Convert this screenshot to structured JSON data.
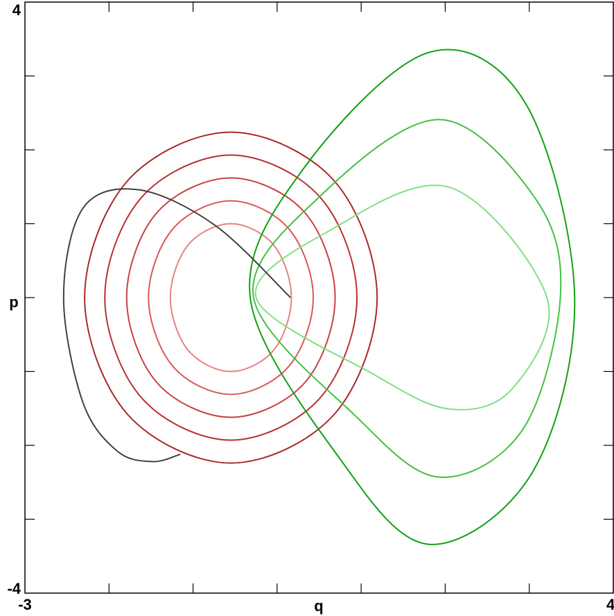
{
  "chart_data": {
    "type": "line",
    "xlabel": "q",
    "ylabel": "p",
    "xlim": [
      -3,
      4
    ],
    "ylim": [
      -4,
      4
    ],
    "xticks": [
      -3,
      4
    ],
    "yticks": [
      -4,
      4
    ],
    "xminorticks": [
      -2,
      -1,
      0,
      1,
      2,
      3
    ],
    "yminorticks": [
      -3,
      -2,
      -1,
      0,
      1,
      2,
      3
    ],
    "series": [
      {
        "color": "#e88080",
        "closed": true,
        "x": [
          0.17,
          -0.04,
          -0.55,
          -1.06,
          -1.27,
          -1.06,
          -0.55,
          -0.04
        ],
        "y": [
          0,
          0.71,
          1.0,
          0.71,
          0,
          -0.71,
          -1.0,
          -0.71
        ]
      },
      {
        "color": "#d85858",
        "closed": true,
        "x": [
          0.43,
          0.14,
          -0.55,
          -1.24,
          -1.53,
          -1.24,
          -0.55,
          0.14
        ],
        "y": [
          0,
          0.93,
          1.31,
          0.93,
          0,
          -0.93,
          -1.31,
          -0.93
        ]
      },
      {
        "color": "#c84040",
        "closed": true,
        "x": [
          0.69,
          0.33,
          -0.55,
          -1.43,
          -1.79,
          -1.43,
          -0.55,
          0.33
        ],
        "y": [
          0,
          1.15,
          1.62,
          1.15,
          0,
          -1.15,
          -1.62,
          -1.15
        ]
      },
      {
        "color": "#b83030",
        "closed": true,
        "x": [
          0.95,
          0.51,
          -0.55,
          -1.61,
          -2.05,
          -1.61,
          -0.55,
          0.51
        ],
        "y": [
          0,
          1.36,
          1.93,
          1.36,
          0,
          -1.36,
          -1.93,
          -1.36
        ]
      },
      {
        "color": "#a82828",
        "closed": true,
        "x": [
          1.19,
          0.68,
          -0.55,
          -1.78,
          -2.29,
          -1.78,
          -0.55,
          0.68
        ],
        "y": [
          0,
          1.58,
          2.24,
          1.58,
          0,
          -1.58,
          -2.24,
          -1.58
        ]
      },
      {
        "color": "#80e080",
        "closed": true,
        "x": [
          -0.25,
          0.66,
          2.06,
          3.21,
          2.8,
          2.06,
          1.15
        ],
        "y": [
          0,
          0.93,
          1.49,
          0,
          -1.23,
          -1.51,
          -1.04
        ]
      },
      {
        "color": "#40c040",
        "closed": true,
        "x": [
          -0.28,
          0.49,
          1.93,
          3.09,
          3.37,
          2.92,
          1.93,
          0.94
        ],
        "y": [
          0,
          1.35,
          2.41,
          1.31,
          0,
          -1.79,
          -2.43,
          -1.61
        ]
      },
      {
        "color": "#10a010",
        "closed": true,
        "x": [
          -0.32,
          0.33,
          1.81,
          2.96,
          3.54,
          3.04,
          1.81,
          0.74
        ],
        "y": [
          0,
          1.77,
          3.32,
          2.62,
          0,
          -2.36,
          -3.34,
          -2.17
        ]
      },
      {
        "color": "#404040",
        "closed": false,
        "x": [
          0.16,
          -0.74,
          -1.65,
          -2.31,
          -2.54,
          -2.31,
          -1.9,
          -1.48,
          -1.15
        ],
        "y": [
          0,
          0.98,
          1.46,
          1.21,
          0,
          -1.42,
          -2.08,
          -2.22,
          -2.12
        ]
      }
    ]
  }
}
